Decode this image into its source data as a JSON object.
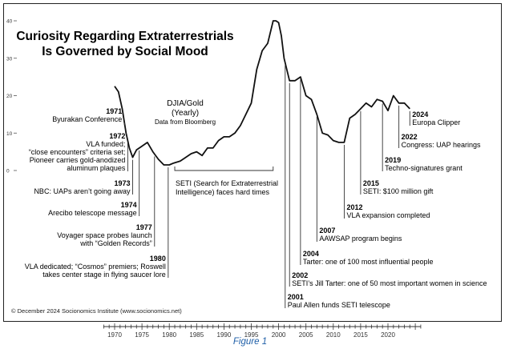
{
  "chart_data": {
    "type": "line",
    "title": "Curiosity Regarding Extraterrestrials\nIs Governed by Social Mood",
    "series": [
      {
        "name": "DJIA/Gold",
        "x": [
          1970,
          1970.7,
          1971.4,
          1972.1,
          1972.7,
          1973.3,
          1974,
          1975,
          1976,
          1977,
          1978,
          1979,
          1980,
          1980.8,
          1982,
          1983,
          1984,
          1985,
          1986,
          1987,
          1988,
          1989,
          1990,
          1991,
          1992,
          1993,
          1994,
          1995,
          1996,
          1997,
          1998,
          1999,
          1999.5,
          2000,
          2000.5,
          2001,
          2002,
          2003,
          2004,
          2005,
          2006,
          2007,
          2008,
          2009,
          2010,
          2011,
          2012,
          2013,
          2014,
          2015,
          2016,
          2017,
          2018,
          2019,
          2020,
          2021,
          2022,
          2023,
          2024
        ],
        "values": [
          22.5,
          21,
          16.5,
          10,
          6,
          3.5,
          5.5,
          6.5,
          7.5,
          5,
          3,
          1.5,
          1.5,
          2,
          2.5,
          3.5,
          4.5,
          5,
          4,
          6,
          6,
          8,
          9,
          9,
          10,
          12,
          15,
          18,
          27,
          32,
          34,
          40,
          40,
          39.5,
          36,
          30,
          24,
          24,
          25,
          20,
          19,
          15,
          10,
          9.5,
          8,
          7.5,
          7.5,
          14,
          15,
          16.5,
          18,
          17,
          19,
          18.5,
          16,
          20,
          18,
          18,
          16.5
        ]
      }
    ],
    "xlim": [
      1967,
      2027
    ],
    "ylim": [
      0,
      41
    ],
    "x_ticks": [
      1970,
      1975,
      1980,
      1985,
      1990,
      1995,
      2000,
      2005,
      2010,
      2015,
      2020
    ],
    "y_ticks": [
      0,
      10,
      20,
      30,
      40
    ],
    "series_label": {
      "title": "DJIA/Gold",
      "subtitle": "(Yearly)",
      "source": "Data from Bloomberg"
    },
    "annotations": [
      {
        "year": "1971",
        "text": [
          "Byurakan Conference"
        ],
        "x": 1971.8
      },
      {
        "year": "1972",
        "text": [
          "VLA funded;",
          "“close encounters” criteria set;",
          "Pioneer carries gold-anodized",
          "aluminum plaques"
        ],
        "x": 1972.4
      },
      {
        "year": "1973",
        "text": [
          "NBC: UAPs aren’t going away"
        ],
        "x": 1973.3
      },
      {
        "year": "1974",
        "text": [
          "Arecibo telescope message"
        ],
        "x": 1974.5
      },
      {
        "year": "1977",
        "text": [
          "Voyager space probes launch",
          "with “Golden Records”"
        ],
        "x": 1977.3
      },
      {
        "year": "1980",
        "text": [
          "VLA dedicated; “Cosmos” premiers; Roswell",
          "takes center stage in flying saucer lore"
        ],
        "x": 1979.8
      },
      {
        "year": "2001",
        "text": [
          "Paul Allen funds SETI telescope"
        ],
        "x": 2001.2
      },
      {
        "year": "2002",
        "text": [
          "SETI’s Jill Tarter: one of 50 most important women in science"
        ],
        "x": 2002
      },
      {
        "year": "2004",
        "text": [
          "Tarter: one of 100 most influential people"
        ],
        "x": 2004
      },
      {
        "year": "2007",
        "text": [
          "AAWSAP program begins"
        ],
        "x": 2007
      },
      {
        "year": "2012",
        "text": [
          "VLA expansion completed"
        ],
        "x": 2012
      },
      {
        "year": "2015",
        "text": [
          "SETI: $100 million gift"
        ],
        "x": 2015
      },
      {
        "year": "2019",
        "text": [
          "Techno-signatures grant"
        ],
        "x": 2019
      },
      {
        "year": "2022",
        "text": [
          "Congress: UAP hearings"
        ],
        "x": 2022
      },
      {
        "year": "2024",
        "text": [
          "Europa Clipper"
        ],
        "x": 2024
      }
    ],
    "bracket_note": [
      "SETI (Search for Extraterrestrial",
      "Intelligence) faces hard times"
    ],
    "bracket_range": [
      1981,
      1999
    ],
    "credit": "© December 2024 Socionomics Institute (www.socionomics.net)",
    "figure_caption": "Figure 1",
    "line_color": "#111111"
  }
}
